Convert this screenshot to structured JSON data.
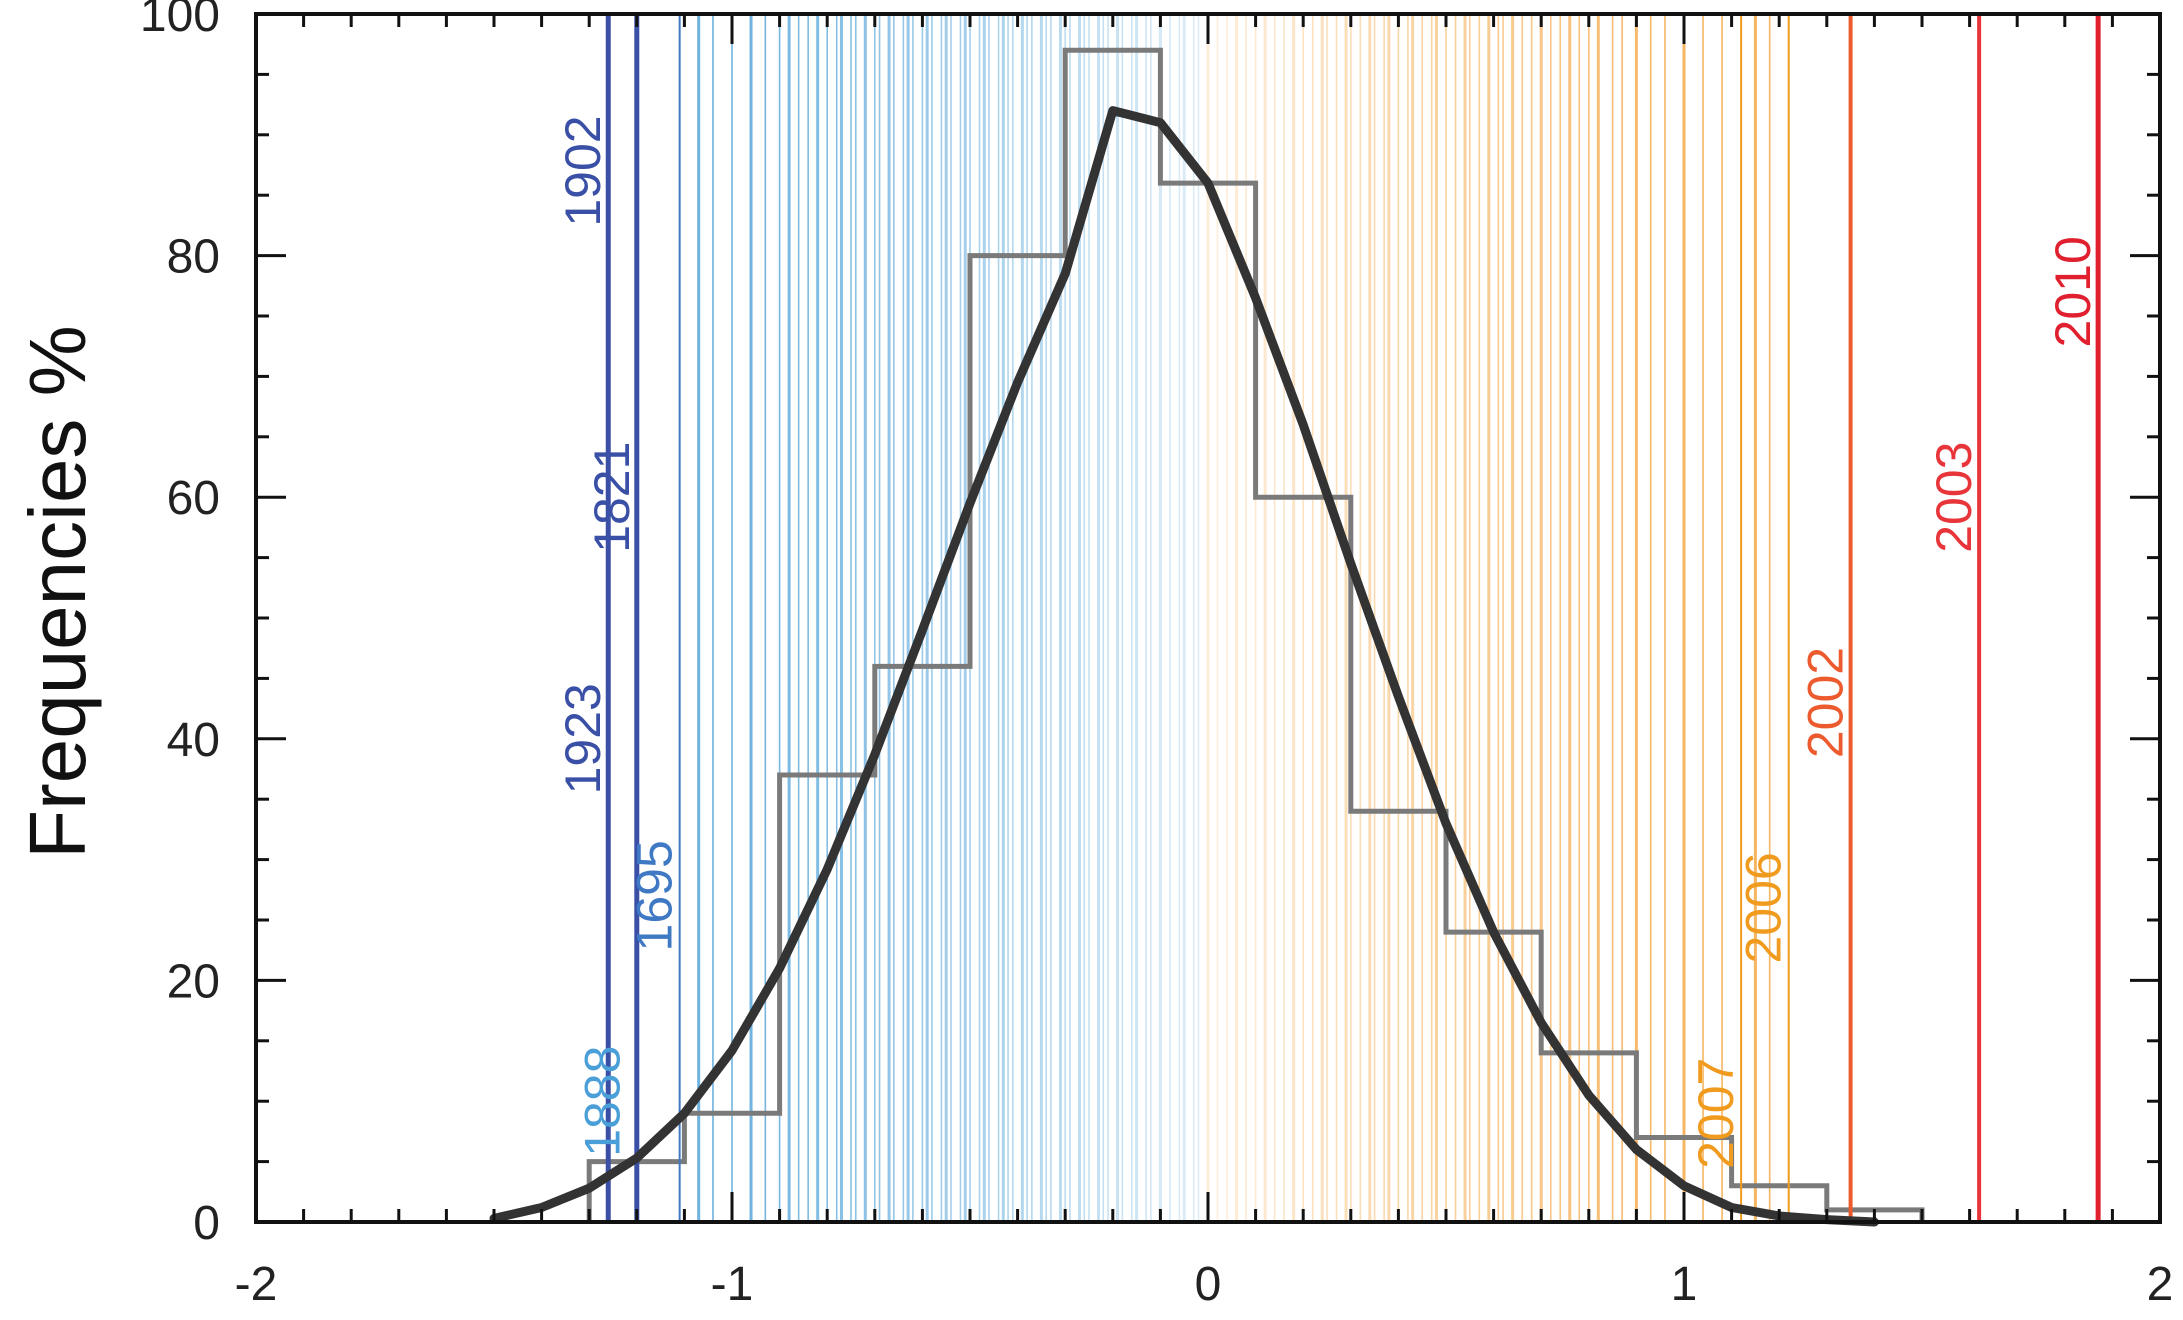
{
  "chart_data": {
    "type": "bar",
    "title": "",
    "xlabel": "",
    "ylabel": "Frequencies %",
    "xlim": [
      -2,
      2
    ],
    "ylim": [
      0,
      100
    ],
    "xticks": [
      {
        "value": -2,
        "label": "-2"
      },
      {
        "value": -1,
        "label": "-1"
      },
      {
        "value": 0,
        "label": "0"
      },
      {
        "value": 1,
        "label": "1"
      },
      {
        "value": 2,
        "label": "2"
      }
    ],
    "yticks": [
      {
        "value": 0,
        "label": "0"
      },
      {
        "value": 20,
        "label": "20"
      },
      {
        "value": 40,
        "label": "40"
      },
      {
        "value": 60,
        "label": "60"
      },
      {
        "value": 80,
        "label": "80"
      },
      {
        "value": 100,
        "label": "100"
      }
    ],
    "histogram": {
      "bin_edges": [
        -1.3,
        -1.1,
        -0.9,
        -0.7,
        -0.5,
        -0.3,
        -0.1,
        0.1,
        0.3,
        0.5,
        0.7,
        0.9,
        1.1,
        1.3,
        1.5
      ],
      "values": [
        5,
        9,
        37,
        46,
        80,
        97,
        86,
        60,
        34,
        24,
        14,
        7,
        3,
        1
      ],
      "color": "#7a7a7a"
    },
    "fitted_curve": {
      "color": "#333333",
      "points": [
        [
          -1.5,
          0.3
        ],
        [
          -1.4,
          1.2
        ],
        [
          -1.3,
          2.8
        ],
        [
          -1.2,
          5.3
        ],
        [
          -1.1,
          9.0
        ],
        [
          -1.0,
          14.2
        ],
        [
          -0.9,
          21.0
        ],
        [
          -0.8,
          29.2
        ],
        [
          -0.7,
          38.7
        ],
        [
          -0.6,
          49.0
        ],
        [
          -0.5,
          59.5
        ],
        [
          -0.4,
          69.5
        ],
        [
          -0.3,
          78.5
        ],
        [
          -0.2,
          92.0
        ],
        [
          -0.1,
          91.0
        ],
        [
          0.0,
          86.0
        ],
        [
          0.1,
          76.5
        ],
        [
          0.2,
          66.0
        ],
        [
          0.3,
          54.5
        ],
        [
          0.4,
          43.5
        ],
        [
          0.5,
          33.0
        ],
        [
          0.6,
          24.0
        ],
        [
          0.7,
          16.5
        ],
        [
          0.8,
          10.5
        ],
        [
          0.9,
          6.0
        ],
        [
          1.0,
          3.0
        ],
        [
          1.1,
          1.2
        ],
        [
          1.2,
          0.5
        ],
        [
          1.3,
          0.2
        ],
        [
          1.4,
          0.0
        ]
      ]
    },
    "year_lines": [
      {
        "year": "1902",
        "x": -1.26,
        "color": "#3a4fa6",
        "label_y": 87,
        "width": 5
      },
      {
        "year": "1821",
        "x": -1.2,
        "color": "#3a4fa6",
        "label_y": 60,
        "width": 5
      },
      {
        "year": "1923",
        "x": -1.26,
        "color": "#3a4fa6",
        "label_y": 40,
        "width": 0
      },
      {
        "year": "1695",
        "x": -1.11,
        "color": "#3f79c4",
        "label_y": 27,
        "width": 2
      },
      {
        "year": "1888",
        "x": -1.22,
        "color": "#4a9fd8",
        "label_y": 10,
        "width": 0
      },
      {
        "year": "2007",
        "x": 1.12,
        "color": "#f09a1e",
        "label_y": 9,
        "width": 2
      },
      {
        "year": "2006",
        "x": 1.22,
        "color": "#f09a1e",
        "label_y": 26,
        "width": 2
      },
      {
        "year": "2002",
        "x": 1.35,
        "color": "#ec5a2e",
        "label_y": 43,
        "width": 4
      },
      {
        "year": "2003",
        "x": 1.62,
        "color": "#e8353a",
        "label_y": 60,
        "width": 4
      },
      {
        "year": "2010",
        "x": 1.87,
        "color": "#e0202e",
        "label_y": 77,
        "width": 5
      }
    ],
    "background_lines": {
      "cold_color": "#4a9fd8",
      "warm_color": "#f4a23a",
      "x_positions": [
        -1.07,
        -1.04,
        -1.0,
        -0.96,
        -0.93,
        -0.9,
        -0.88,
        -0.86,
        -0.84,
        -0.82,
        -0.8,
        -0.78,
        -0.77,
        -0.75,
        -0.74,
        -0.72,
        -0.7,
        -0.69,
        -0.67,
        -0.66,
        -0.64,
        -0.63,
        -0.62,
        -0.6,
        -0.59,
        -0.58,
        -0.56,
        -0.55,
        -0.54,
        -0.52,
        -0.51,
        -0.5,
        -0.48,
        -0.47,
        -0.46,
        -0.44,
        -0.43,
        -0.42,
        -0.41,
        -0.39,
        -0.38,
        -0.37,
        -0.35,
        -0.34,
        -0.33,
        -0.31,
        -0.3,
        -0.29,
        -0.27,
        -0.26,
        -0.25,
        -0.23,
        -0.22,
        -0.21,
        -0.19,
        -0.18,
        -0.16,
        -0.15,
        -0.13,
        -0.12,
        -0.1,
        -0.08,
        -0.06,
        -0.05,
        -0.03,
        -0.02,
        0.0,
        0.02,
        0.04,
        0.06,
        0.08,
        0.1,
        0.12,
        0.14,
        0.16,
        0.18,
        0.2,
        0.22,
        0.24,
        0.25,
        0.27,
        0.29,
        0.3,
        0.32,
        0.34,
        0.35,
        0.37,
        0.38,
        0.4,
        0.42,
        0.43,
        0.45,
        0.47,
        0.48,
        0.5,
        0.52,
        0.54,
        0.55,
        0.57,
        0.59,
        0.61,
        0.62,
        0.64,
        0.66,
        0.68,
        0.7,
        0.72,
        0.74,
        0.76,
        0.78,
        0.8,
        0.82,
        0.85,
        0.87,
        0.9,
        0.93,
        0.96,
        1.0,
        1.04,
        1.08,
        1.15,
        1.18
      ]
    }
  }
}
